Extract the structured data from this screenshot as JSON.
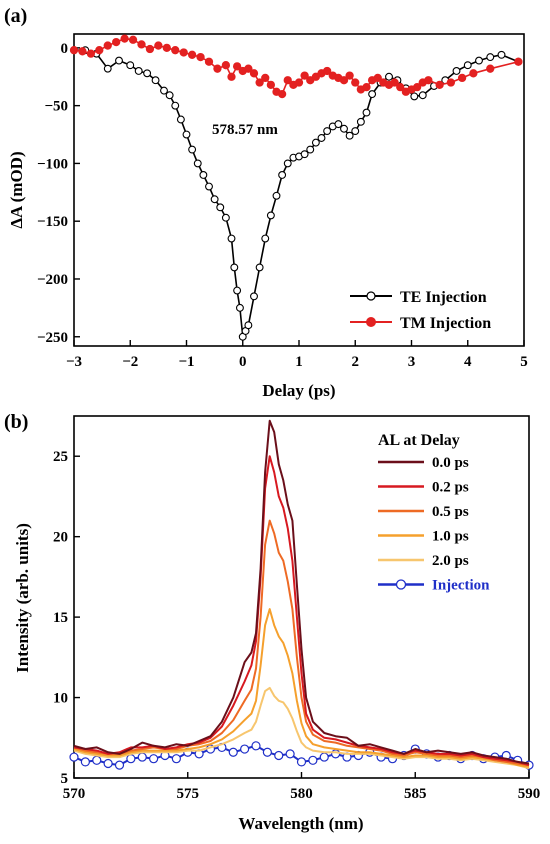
{
  "chart_data": [
    {
      "type": "line",
      "panel_label": "(a)",
      "title": "",
      "xlabel": "Delay (ps)",
      "ylabel": "ΔA (mOD)",
      "xlim": [
        -3,
        5
      ],
      "ylim": [
        -258,
        12
      ],
      "xticks": [
        -3,
        -2,
        -1,
        0,
        1,
        2,
        3,
        4,
        5
      ],
      "yticks": [
        0,
        -50,
        -100,
        -150,
        -200,
        -250
      ],
      "xtick_labels": [
        "−3",
        "−2",
        "−1",
        "0",
        "1",
        "2",
        "3",
        "4",
        "5"
      ],
      "ytick_labels": [
        "0",
        "−50",
        "−100",
        "−150",
        "−200",
        "−250"
      ],
      "annotation": "578.57 nm",
      "legend_position": "bottom-right",
      "grid": false,
      "series": [
        {
          "name": "TE Injection",
          "color": "#000000",
          "marker": "open-circle",
          "x": [
            -3.0,
            -2.8,
            -2.6,
            -2.4,
            -2.2,
            -2.0,
            -1.85,
            -1.7,
            -1.55,
            -1.4,
            -1.3,
            -1.2,
            -1.1,
            -1.0,
            -0.9,
            -0.8,
            -0.7,
            -0.6,
            -0.5,
            -0.4,
            -0.3,
            -0.2,
            -0.15,
            -0.1,
            -0.05,
            0.0,
            0.05,
            0.1,
            0.2,
            0.3,
            0.4,
            0.5,
            0.6,
            0.7,
            0.8,
            0.9,
            1.0,
            1.1,
            1.2,
            1.3,
            1.4,
            1.5,
            1.6,
            1.7,
            1.8,
            1.9,
            2.0,
            2.1,
            2.2,
            2.3,
            2.45,
            2.6,
            2.75,
            2.9,
            3.05,
            3.2,
            3.4,
            3.6,
            3.8,
            4.0,
            4.2,
            4.4,
            4.6,
            4.9
          ],
          "y": [
            -2,
            -2,
            -5,
            -18,
            -11,
            -15,
            -20,
            -22,
            -28,
            -37,
            -41,
            -50,
            -62,
            -75,
            -88,
            -100,
            -110,
            -120,
            -131,
            -138,
            -147,
            -165,
            -190,
            -210,
            -225,
            -250,
            -245,
            -240,
            -215,
            -190,
            -165,
            -145,
            -128,
            -110,
            -100,
            -95,
            -94,
            -92,
            -88,
            -82,
            -78,
            -72,
            -68,
            -66,
            -70,
            -76,
            -72,
            -64,
            -56,
            -40,
            -30,
            -25,
            -28,
            -35,
            -42,
            -41,
            -33,
            -28,
            -20,
            -15,
            -11,
            -8,
            -6,
            -12
          ]
        },
        {
          "name": "TM Injection",
          "color": "#e32121",
          "marker": "filled-circle",
          "x": [
            -3.0,
            -2.85,
            -2.7,
            -2.55,
            -2.4,
            -2.25,
            -2.1,
            -1.95,
            -1.8,
            -1.65,
            -1.5,
            -1.35,
            -1.2,
            -1.05,
            -0.9,
            -0.75,
            -0.6,
            -0.45,
            -0.3,
            -0.2,
            -0.1,
            0.0,
            0.1,
            0.2,
            0.3,
            0.4,
            0.5,
            0.6,
            0.7,
            0.8,
            0.9,
            1.0,
            1.1,
            1.2,
            1.3,
            1.4,
            1.5,
            1.6,
            1.7,
            1.8,
            1.9,
            2.0,
            2.1,
            2.2,
            2.3,
            2.4,
            2.5,
            2.6,
            2.7,
            2.8,
            2.9,
            3.0,
            3.1,
            3.2,
            3.3,
            3.5,
            3.7,
            3.9,
            4.1,
            4.4,
            4.9
          ],
          "y": [
            -2,
            -3,
            -5,
            -2,
            2,
            5,
            8,
            7,
            3,
            -1,
            2,
            0,
            -2,
            -4,
            -6,
            -8,
            -12,
            -18,
            -15,
            -25,
            -16,
            -20,
            -18,
            -22,
            -30,
            -26,
            -32,
            -38,
            -40,
            -28,
            -32,
            -30,
            -24,
            -28,
            -25,
            -22,
            -20,
            -24,
            -26,
            -28,
            -24,
            -30,
            -36,
            -34,
            -28,
            -26,
            -30,
            -32,
            -30,
            -34,
            -38,
            -36,
            -34,
            -30,
            -28,
            -32,
            -30,
            -26,
            -22,
            -18,
            -12
          ]
        }
      ]
    },
    {
      "type": "line",
      "panel_label": "(b)",
      "title": "",
      "xlabel": "Wavelength (nm)",
      "ylabel": "Intensity (arb. units)",
      "xlim": [
        570,
        590
      ],
      "ylim": [
        5,
        27.5
      ],
      "xticks": [
        570,
        575,
        580,
        585,
        590
      ],
      "yticks": [
        5,
        10,
        15,
        20,
        25
      ],
      "legend_title": "AL at Delay",
      "legend_position": "top-right",
      "grid": false,
      "series": [
        {
          "name": "0.0 ps",
          "color": "#6b0f1a",
          "x": [
            570.0,
            570.5,
            571.0,
            571.5,
            572.0,
            572.5,
            573.0,
            573.5,
            574.0,
            574.5,
            575.0,
            575.5,
            576.0,
            576.5,
            577.0,
            577.5,
            577.8,
            578.0,
            578.2,
            578.4,
            578.6,
            578.8,
            579.0,
            579.2,
            579.4,
            579.6,
            579.8,
            580.0,
            580.2,
            580.5,
            581.0,
            581.5,
            582.0,
            582.5,
            583.0,
            583.5,
            584.0,
            584.5,
            585.0,
            585.5,
            586.0,
            586.5,
            587.0,
            587.5,
            588.0,
            588.5,
            589.0,
            589.5,
            590.0
          ],
          "y": [
            7.0,
            6.8,
            6.9,
            6.6,
            6.5,
            6.8,
            7.2,
            7.0,
            6.9,
            7.1,
            7.0,
            7.3,
            7.6,
            8.5,
            10.0,
            12.2,
            12.8,
            14.0,
            18.0,
            24.0,
            27.2,
            26.5,
            24.5,
            23.5,
            22.0,
            21.0,
            17.0,
            13.0,
            10.0,
            8.5,
            7.8,
            7.6,
            7.5,
            7.0,
            7.1,
            6.9,
            6.7,
            6.5,
            6.8,
            6.6,
            6.7,
            6.6,
            6.5,
            6.6,
            6.4,
            6.3,
            6.2,
            6.0,
            5.9
          ]
        },
        {
          "name": "0.2 ps",
          "color": "#d71920",
          "x": [
            570.0,
            570.5,
            571.0,
            571.5,
            572.0,
            572.5,
            573.0,
            573.5,
            574.0,
            574.5,
            575.0,
            575.5,
            576.0,
            576.5,
            577.0,
            577.5,
            577.8,
            578.0,
            578.2,
            578.4,
            578.6,
            578.8,
            579.0,
            579.2,
            579.4,
            579.6,
            579.8,
            580.0,
            580.2,
            580.5,
            581.0,
            581.5,
            582.0,
            582.5,
            583.0,
            583.5,
            584.0,
            584.5,
            585.0,
            585.5,
            586.0,
            586.5,
            587.0,
            587.5,
            588.0,
            588.5,
            589.0,
            589.5,
            590.0
          ],
          "y": [
            6.9,
            6.8,
            6.7,
            6.5,
            6.6,
            6.9,
            6.9,
            7.0,
            6.8,
            6.9,
            7.1,
            7.2,
            7.5,
            8.2,
            9.5,
            11.0,
            12.0,
            13.5,
            17.5,
            23.0,
            25.0,
            24.0,
            22.5,
            21.8,
            20.5,
            18.5,
            15.0,
            11.5,
            9.0,
            8.0,
            7.5,
            7.4,
            7.2,
            7.0,
            6.9,
            6.8,
            6.6,
            6.5,
            6.7,
            6.6,
            6.5,
            6.5,
            6.4,
            6.5,
            6.3,
            6.2,
            6.1,
            6.0,
            5.8
          ]
        },
        {
          "name": "0.5 ps",
          "color": "#ee6a24",
          "x": [
            570.0,
            570.5,
            571.0,
            571.5,
            572.0,
            572.5,
            573.0,
            573.5,
            574.0,
            574.5,
            575.0,
            575.5,
            576.0,
            576.5,
            577.0,
            577.5,
            577.8,
            578.0,
            578.2,
            578.4,
            578.6,
            578.8,
            579.0,
            579.2,
            579.4,
            579.6,
            579.8,
            580.0,
            580.2,
            580.5,
            581.0,
            581.5,
            582.0,
            582.5,
            583.0,
            583.5,
            584.0,
            584.5,
            585.0,
            585.5,
            586.0,
            586.5,
            587.0,
            587.5,
            588.0,
            588.5,
            589.0,
            589.5,
            590.0
          ],
          "y": [
            6.9,
            6.7,
            6.6,
            6.5,
            6.5,
            6.7,
            6.8,
            6.9,
            6.8,
            6.8,
            7.0,
            7.1,
            7.3,
            7.8,
            8.6,
            9.8,
            10.5,
            11.8,
            15.0,
            19.5,
            21.0,
            20.2,
            19.0,
            18.5,
            17.2,
            15.5,
            12.5,
            10.0,
            8.5,
            7.7,
            7.3,
            7.2,
            7.0,
            6.9,
            6.8,
            6.7,
            6.5,
            6.4,
            6.6,
            6.5,
            6.4,
            6.4,
            6.3,
            6.4,
            6.3,
            6.1,
            6.0,
            5.9,
            5.8
          ]
        },
        {
          "name": "1.0 ps",
          "color": "#f5a02d",
          "x": [
            570.0,
            570.5,
            571.0,
            571.5,
            572.0,
            572.5,
            573.0,
            573.5,
            574.0,
            574.5,
            575.0,
            575.5,
            576.0,
            576.5,
            577.0,
            577.5,
            577.8,
            578.0,
            578.2,
            578.4,
            578.6,
            578.8,
            579.0,
            579.2,
            579.4,
            579.6,
            579.8,
            580.0,
            580.2,
            580.5,
            581.0,
            581.5,
            582.0,
            582.5,
            583.0,
            583.5,
            584.0,
            584.5,
            585.0,
            585.5,
            586.0,
            586.5,
            587.0,
            587.5,
            588.0,
            588.5,
            589.0,
            589.5,
            590.0
          ],
          "y": [
            6.8,
            6.6,
            6.5,
            6.4,
            6.4,
            6.6,
            6.7,
            6.7,
            6.7,
            6.7,
            6.8,
            6.9,
            7.1,
            7.4,
            7.9,
            8.6,
            9.0,
            9.8,
            12.0,
            14.5,
            15.5,
            14.5,
            13.8,
            13.4,
            12.6,
            11.5,
            9.8,
            8.4,
            7.6,
            7.1,
            6.9,
            6.8,
            6.7,
            6.6,
            6.6,
            6.5,
            6.4,
            6.3,
            6.4,
            6.4,
            6.3,
            6.3,
            6.2,
            6.3,
            6.2,
            6.1,
            6.0,
            5.8,
            5.7
          ]
        },
        {
          "name": "2.0 ps",
          "color": "#f7c66e",
          "x": [
            570.0,
            570.5,
            571.0,
            571.5,
            572.0,
            572.5,
            573.0,
            573.5,
            574.0,
            574.5,
            575.0,
            575.5,
            576.0,
            576.5,
            577.0,
            577.5,
            577.8,
            578.0,
            578.2,
            578.4,
            578.6,
            578.8,
            579.0,
            579.2,
            579.4,
            579.6,
            579.8,
            580.0,
            580.2,
            580.5,
            581.0,
            581.5,
            582.0,
            582.5,
            583.0,
            583.5,
            584.0,
            584.5,
            585.0,
            585.5,
            586.0,
            586.5,
            587.0,
            587.5,
            588.0,
            588.5,
            589.0,
            589.5,
            590.0
          ],
          "y": [
            6.7,
            6.5,
            6.4,
            6.3,
            6.3,
            6.5,
            6.6,
            6.6,
            6.6,
            6.6,
            6.7,
            6.7,
            6.9,
            7.1,
            7.4,
            7.8,
            8.0,
            8.5,
            9.5,
            10.4,
            10.6,
            10.1,
            9.8,
            9.7,
            9.3,
            8.7,
            7.9,
            7.2,
            6.9,
            6.7,
            6.6,
            6.6,
            6.5,
            6.5,
            6.5,
            6.4,
            6.3,
            6.2,
            6.3,
            6.3,
            6.2,
            6.2,
            6.1,
            6.2,
            6.1,
            6.0,
            5.9,
            5.8,
            5.6
          ]
        },
        {
          "name": "Injection",
          "color": "#1f2fc8",
          "marker": "open-circle",
          "x": [
            570.0,
            570.5,
            571.0,
            571.5,
            572.0,
            572.5,
            573.0,
            573.5,
            574.0,
            574.5,
            575.0,
            575.5,
            576.0,
            576.5,
            577.0,
            577.5,
            578.0,
            578.5,
            579.0,
            579.5,
            580.0,
            580.5,
            581.0,
            581.5,
            582.0,
            582.5,
            583.0,
            583.5,
            584.0,
            584.5,
            585.0,
            585.5,
            586.0,
            586.5,
            587.0,
            587.5,
            588.0,
            588.5,
            589.0,
            589.5,
            590.0
          ],
          "y": [
            6.3,
            6.0,
            6.1,
            5.9,
            5.8,
            6.2,
            6.3,
            6.2,
            6.4,
            6.2,
            6.6,
            6.5,
            6.8,
            6.9,
            6.6,
            6.8,
            7.0,
            6.6,
            6.4,
            6.5,
            6.0,
            6.1,
            6.3,
            6.5,
            6.3,
            6.4,
            6.6,
            6.3,
            6.2,
            6.4,
            6.8,
            6.5,
            6.3,
            6.4,
            6.2,
            6.4,
            6.2,
            6.3,
            6.4,
            6.1,
            5.8
          ]
        }
      ]
    }
  ]
}
